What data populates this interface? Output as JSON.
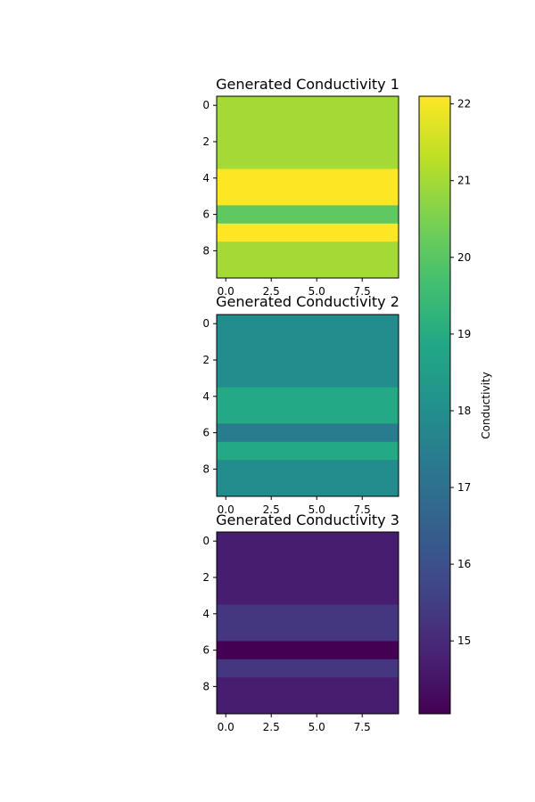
{
  "chart_data": [
    {
      "type": "heatmap",
      "title": "Generated Conductivity 1",
      "x_ticks": [
        "0.0",
        "2.5",
        "5.0",
        "7.5"
      ],
      "y_ticks": [
        "0",
        "2",
        "4",
        "6",
        "8"
      ],
      "x_range": [
        -0.5,
        9.5
      ],
      "y_range": [
        -0.5,
        9.5
      ],
      "y_inverted": true,
      "row_values": [
        21.0,
        21.0,
        21.0,
        21.0,
        22.1,
        22.1,
        20.1,
        22.1,
        21.0,
        21.0
      ]
    },
    {
      "type": "heatmap",
      "title": "Generated Conductivity 2",
      "x_ticks": [
        "0.0",
        "2.5",
        "5.0",
        "7.5"
      ],
      "y_ticks": [
        "0",
        "2",
        "4",
        "6",
        "8"
      ],
      "x_range": [
        -0.5,
        9.5
      ],
      "y_range": [
        -0.5,
        9.5
      ],
      "y_inverted": true,
      "row_values": [
        17.9,
        17.9,
        17.9,
        17.9,
        18.9,
        18.9,
        17.4,
        18.9,
        17.9,
        17.9
      ]
    },
    {
      "type": "heatmap",
      "title": "Generated Conductivity 3",
      "x_ticks": [
        "0.0",
        "2.5",
        "5.0",
        "7.5"
      ],
      "y_ticks": [
        "0",
        "2",
        "4",
        "6",
        "8"
      ],
      "x_range": [
        -0.5,
        9.5
      ],
      "y_range": [
        -0.5,
        9.5
      ],
      "y_inverted": true,
      "row_values": [
        14.7,
        14.7,
        14.7,
        14.7,
        15.3,
        15.3,
        14.05,
        15.3,
        14.7,
        14.7
      ]
    }
  ],
  "colorbar": {
    "label": "Conductivity",
    "colormap": "viridis",
    "range": [
      14.05,
      22.1
    ],
    "ticks": [
      15,
      16,
      17,
      18,
      19,
      20,
      21,
      22
    ]
  }
}
